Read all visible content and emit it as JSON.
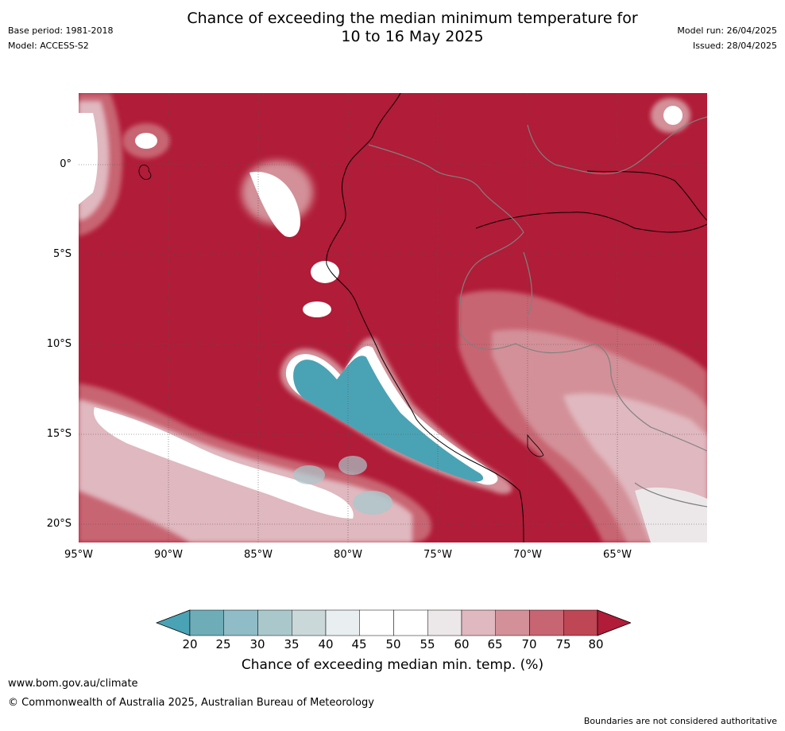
{
  "header": {
    "title_line1": "Chance of exceeding the median minimum temperature for",
    "title_line2": "10 to 16 May 2025",
    "base_period": "Base period: 1981-2018",
    "model": "Model: ACCESS-S2",
    "model_run": "Model run: 26/04/2025",
    "issued": "Issued: 28/04/2025"
  },
  "map": {
    "lat_labels": [
      "0°",
      "5°S",
      "10°S",
      "15°S",
      "20°S"
    ],
    "lon_labels": [
      "95°W",
      "90°W",
      "85°W",
      "80°W",
      "75°W",
      "70°W",
      "65°W"
    ],
    "background_color": "#b11c38"
  },
  "colorbar": {
    "title": "Chance of exceeding median min. temp. (%)",
    "ticks": [
      "20",
      "25",
      "30",
      "35",
      "40",
      "45",
      "50",
      "55",
      "60",
      "65",
      "70",
      "75",
      "80"
    ],
    "colors": [
      "#4aa3b5",
      "#6eacb8",
      "#8fbcc6",
      "#aac8cc",
      "#cad8da",
      "#e9eef0",
      "#ffffff",
      "#ffffff",
      "#ece8e9",
      "#e0b8bf",
      "#d39098",
      "#c86572",
      "#bf4654",
      "#b11c38"
    ]
  },
  "footer": {
    "url": "www.bom.gov.au/climate",
    "copyright": "© Commonwealth of Australia 2025, Australian Bureau of Meteorology",
    "disclaimer": "Boundaries are not considered authoritative"
  }
}
